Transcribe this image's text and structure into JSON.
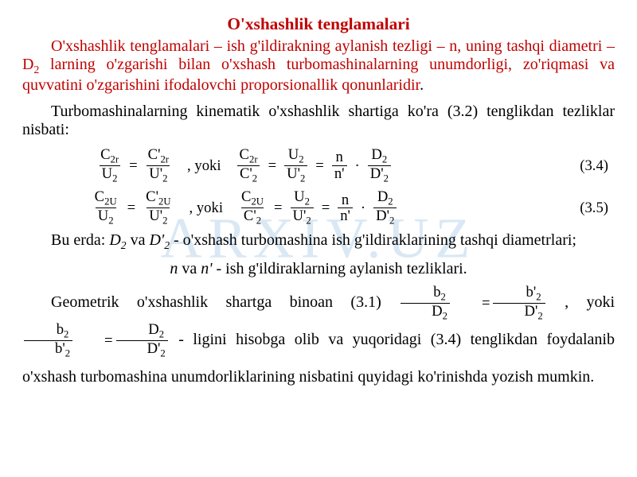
{
  "watermark": {
    "text": "ARXIV.UZ",
    "color": "#d9e8f4"
  },
  "colors": {
    "title": "#c00000",
    "highlight": "#c00000",
    "body": "#000000",
    "background": "#ffffff"
  },
  "typography": {
    "title_fontsize_pt": 16,
    "body_fontsize_pt": 15,
    "eq_fontsize_pt": 14,
    "font_family": "Times New Roman"
  },
  "title": "O'xshashlik tenglamalari",
  "para1_red": "O'xshashlik tenglamalari – ish g'ildirakning aylanish tezligi – n, uning tashqi diametri – D",
  "para1_red_sub": "2",
  "para1_red_cont": " larning o'zgarishi bilan o'xshash turbomashinalarning unumdorligi, zo'riqmasi va quvvatini o'zgarishini ifodalovchi proporsionallik qonunlaridir",
  "para1_black_tail": ".",
  "para2": "Turbomashinalarning kinematik o'xshashlik shartiga ko'ra (3.2) tenglikdan tezliklar nisbati:",
  "yoki": ", yoki",
  "eq34": {
    "label": "(3.4)",
    "l1n": "C",
    "l1n_sub": "2r",
    "l1d": "U",
    "l1d_sub": "2",
    "r1n": "C'",
    "r1n_sub": "2r",
    "r1d": "U'",
    "r1d_sub": "2",
    "l2n": "C",
    "l2n_sub": "2r",
    "l2d": "C'",
    "l2d_sub": "2",
    "m2n": "U",
    "m2n_sub": "2",
    "m2d": "U'",
    "m2d_sub": "2",
    "n2n": "n",
    "n2d": "n'",
    "d2n": "D",
    "d2n_sub": "2",
    "d2d": "D'",
    "d2d_sub": "2"
  },
  "eq35": {
    "label": "(3.5)",
    "l1n": "C",
    "l1n_sub": "2U",
    "l1d": "U",
    "l1d_sub": "2",
    "r1n": "C'",
    "r1n_sub": "2U",
    "r1d": "U'",
    "r1d_sub": "2",
    "l2n": "C",
    "l2n_sub": "2U",
    "l2d": "C'",
    "l2d_sub": "2",
    "m2n": "U",
    "m2n_sub": "2",
    "m2d": "U'",
    "m2d_sub": "2",
    "n2n": "n",
    "n2d": "n'",
    "d2n": "D",
    "d2n_sub": "2",
    "d2d": "D'",
    "d2d_sub": "2"
  },
  "buerda_lead": "Bu erda:   ",
  "D2": "D",
  "D2_sub": "2",
  "va": "  va  ",
  "D2p": "D'",
  "D2p_sub": "2",
  "buerda_tail": " - o'xshash turbomashina ish g'ildiraklarining tashqi diametrlari;",
  "nline_n": "n",
  "nline_np": "n'",
  "nline_tail": " - ish g'ildiraklarning aylanish tezliklari.",
  "geo_lead": "Geometrik o'xshashlik shartga binoan (3.1) ",
  "geo_eq1": {
    "ln": "b",
    "ln_sub": "2",
    "ld": "D",
    "ld_sub": "2",
    "rn": "b'",
    "rn_sub": "2",
    "rd": "D'",
    "rd_sub": "2"
  },
  "geo_yoki": ", yoki   ",
  "geo_eq2": {
    "ln": "b",
    "ln_sub": "2",
    "ld": "b'",
    "ld_sub": "2",
    "rn": "D",
    "rn_sub": "2",
    "rd": "D'",
    "rd_sub": "2"
  },
  "geo_tail1": "   -  ligini",
  "geo_para2": "hisobga olib va yuqoridagi (3.4) tenglikdan foydalanib o'xshash turbomashina unumdorliklarining nisbatini quyidagi ko'rinishda yozish mumkin."
}
